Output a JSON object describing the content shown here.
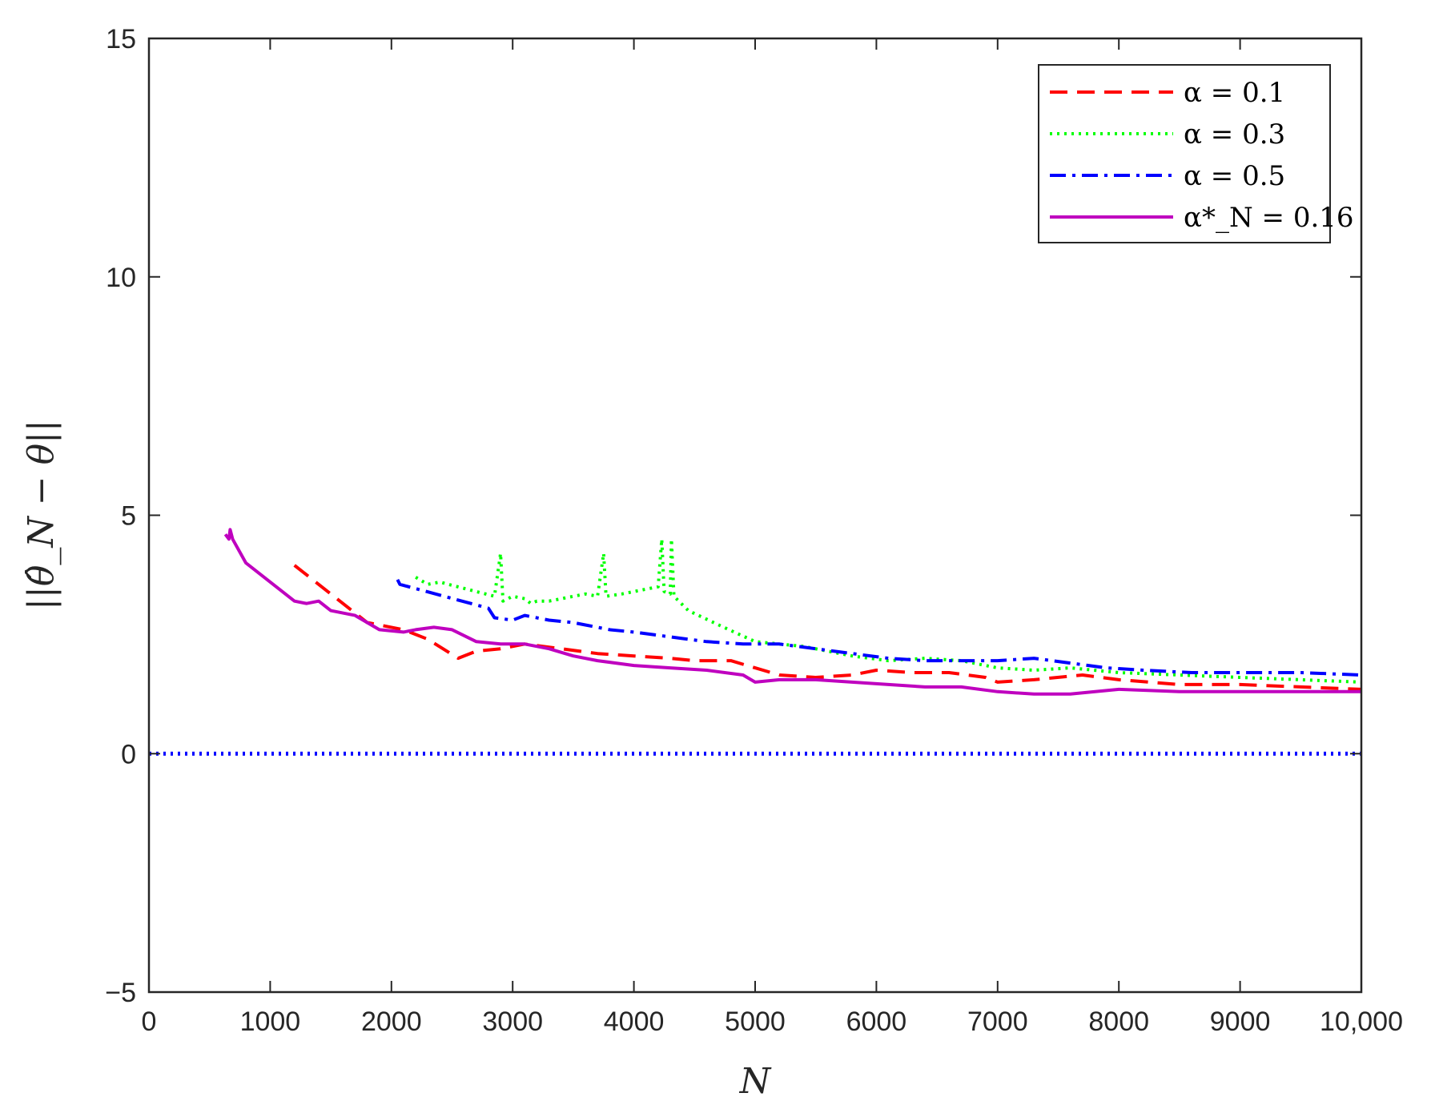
{
  "chart_data": {
    "type": "line",
    "xlabel": "N",
    "ylabel": "||θ̂_N − θ||",
    "xlim": [
      0,
      10000
    ],
    "ylim": [
      -5,
      15
    ],
    "x_ticks": [
      0,
      1000,
      2000,
      3000,
      4000,
      5000,
      6000,
      7000,
      8000,
      9000,
      10000
    ],
    "x_tick_labels": [
      "0",
      "1000",
      "2000",
      "3000",
      "4000",
      "5000",
      "6000",
      "7000",
      "8000",
      "9000",
      "10,000"
    ],
    "y_ticks": [
      -5,
      0,
      5,
      10,
      15
    ],
    "y_tick_labels": [
      "−5",
      "0",
      "5",
      "10",
      "15"
    ],
    "grid": false,
    "legend_position": "top-right",
    "series": [
      {
        "name": "α = 0.1",
        "legend_label": "α = 0.1",
        "color": "#ff0000",
        "style": "dashed",
        "points": [
          [
            1200,
            3.95
          ],
          [
            1800,
            2.75
          ],
          [
            2100,
            2.6
          ],
          [
            2300,
            2.4
          ],
          [
            2550,
            2.0
          ],
          [
            2700,
            2.15
          ],
          [
            2900,
            2.2
          ],
          [
            3100,
            2.3
          ],
          [
            3400,
            2.2
          ],
          [
            3700,
            2.1
          ],
          [
            4000,
            2.05
          ],
          [
            4300,
            2.0
          ],
          [
            4500,
            1.95
          ],
          [
            4800,
            1.95
          ],
          [
            5000,
            1.8
          ],
          [
            5200,
            1.65
          ],
          [
            5500,
            1.6
          ],
          [
            5800,
            1.65
          ],
          [
            6000,
            1.75
          ],
          [
            6300,
            1.7
          ],
          [
            6600,
            1.7
          ],
          [
            6900,
            1.6
          ],
          [
            7000,
            1.5
          ],
          [
            7300,
            1.55
          ],
          [
            7700,
            1.65
          ],
          [
            8000,
            1.55
          ],
          [
            8500,
            1.45
          ],
          [
            9000,
            1.45
          ],
          [
            9500,
            1.4
          ],
          [
            10000,
            1.35
          ]
        ]
      },
      {
        "name": "α = 0.3",
        "legend_label": "α = 0.3",
        "color": "#00ff00",
        "style": "dotted",
        "points": [
          [
            2200,
            3.7
          ],
          [
            2300,
            3.55
          ],
          [
            2400,
            3.6
          ],
          [
            2470,
            3.55
          ],
          [
            2850,
            3.3
          ],
          [
            2900,
            4.2
          ],
          [
            2920,
            3.2
          ],
          [
            3000,
            3.3
          ],
          [
            3100,
            3.25
          ],
          [
            3150,
            3.15
          ],
          [
            3200,
            3.2
          ],
          [
            3300,
            3.2
          ],
          [
            3600,
            3.35
          ],
          [
            3700,
            3.3
          ],
          [
            3750,
            4.2
          ],
          [
            3770,
            3.3
          ],
          [
            3900,
            3.35
          ],
          [
            4000,
            3.4
          ],
          [
            4100,
            3.45
          ],
          [
            4200,
            3.5
          ],
          [
            4230,
            4.5
          ],
          [
            4250,
            3.4
          ],
          [
            4300,
            3.35
          ],
          [
            4310,
            4.5
          ],
          [
            4330,
            3.3
          ],
          [
            4450,
            3.0
          ],
          [
            4700,
            2.7
          ],
          [
            5000,
            2.35
          ],
          [
            5400,
            2.25
          ],
          [
            5800,
            2.05
          ],
          [
            6100,
            1.95
          ],
          [
            6400,
            2.0
          ],
          [
            6700,
            1.95
          ],
          [
            7000,
            1.8
          ],
          [
            7300,
            1.75
          ],
          [
            7600,
            1.8
          ],
          [
            8000,
            1.7
          ],
          [
            8500,
            1.65
          ],
          [
            9000,
            1.6
          ],
          [
            9500,
            1.55
          ],
          [
            10000,
            1.5
          ]
        ]
      },
      {
        "name": "α = 0.5",
        "legend_label": "α = 0.5",
        "color": "#0000ff",
        "style": "dashdot",
        "points": [
          [
            2050,
            3.65
          ],
          [
            2070,
            3.55
          ],
          [
            2800,
            3.05
          ],
          [
            2850,
            2.85
          ],
          [
            3000,
            2.8
          ],
          [
            3100,
            2.9
          ],
          [
            3300,
            2.8
          ],
          [
            3500,
            2.75
          ],
          [
            3600,
            2.7
          ],
          [
            3800,
            2.6
          ],
          [
            4000,
            2.55
          ],
          [
            4300,
            2.45
          ],
          [
            4600,
            2.35
          ],
          [
            4900,
            2.3
          ],
          [
            5200,
            2.3
          ],
          [
            5500,
            2.2
          ],
          [
            5800,
            2.1
          ],
          [
            6100,
            2.0
          ],
          [
            6400,
            1.95
          ],
          [
            6700,
            1.95
          ],
          [
            7000,
            1.95
          ],
          [
            7300,
            2.0
          ],
          [
            7600,
            1.9
          ],
          [
            7900,
            1.8
          ],
          [
            8200,
            1.75
          ],
          [
            8600,
            1.7
          ],
          [
            9000,
            1.7
          ],
          [
            9500,
            1.7
          ],
          [
            10000,
            1.65
          ]
        ]
      },
      {
        "name": "α*_N = 0.16",
        "legend_label": "α*_N = 0.16",
        "color": "#bf00bf",
        "style": "solid",
        "points": [
          [
            630,
            4.6
          ],
          [
            660,
            4.5
          ],
          [
            670,
            4.7
          ],
          [
            690,
            4.5
          ],
          [
            800,
            4.0
          ],
          [
            1200,
            3.2
          ],
          [
            1300,
            3.15
          ],
          [
            1400,
            3.2
          ],
          [
            1500,
            3.0
          ],
          [
            1700,
            2.9
          ],
          [
            1900,
            2.6
          ],
          [
            2100,
            2.55
          ],
          [
            2200,
            2.6
          ],
          [
            2350,
            2.65
          ],
          [
            2500,
            2.6
          ],
          [
            2700,
            2.35
          ],
          [
            2900,
            2.3
          ],
          [
            3100,
            2.3
          ],
          [
            3300,
            2.2
          ],
          [
            3500,
            2.05
          ],
          [
            3700,
            1.95
          ],
          [
            4000,
            1.85
          ],
          [
            4300,
            1.8
          ],
          [
            4600,
            1.75
          ],
          [
            4900,
            1.65
          ],
          [
            5000,
            1.5
          ],
          [
            5200,
            1.55
          ],
          [
            5500,
            1.55
          ],
          [
            5800,
            1.5
          ],
          [
            6100,
            1.45
          ],
          [
            6400,
            1.4
          ],
          [
            6700,
            1.4
          ],
          [
            7000,
            1.3
          ],
          [
            7300,
            1.25
          ],
          [
            7600,
            1.25
          ],
          [
            8000,
            1.35
          ],
          [
            8500,
            1.3
          ],
          [
            9000,
            1.3
          ],
          [
            9500,
            1.3
          ],
          [
            10000,
            1.3
          ]
        ]
      },
      {
        "name": "reference",
        "color": "#0000ff",
        "style": "dotted",
        "points": [
          [
            0,
            0
          ],
          [
            10000,
            0
          ]
        ]
      }
    ]
  }
}
